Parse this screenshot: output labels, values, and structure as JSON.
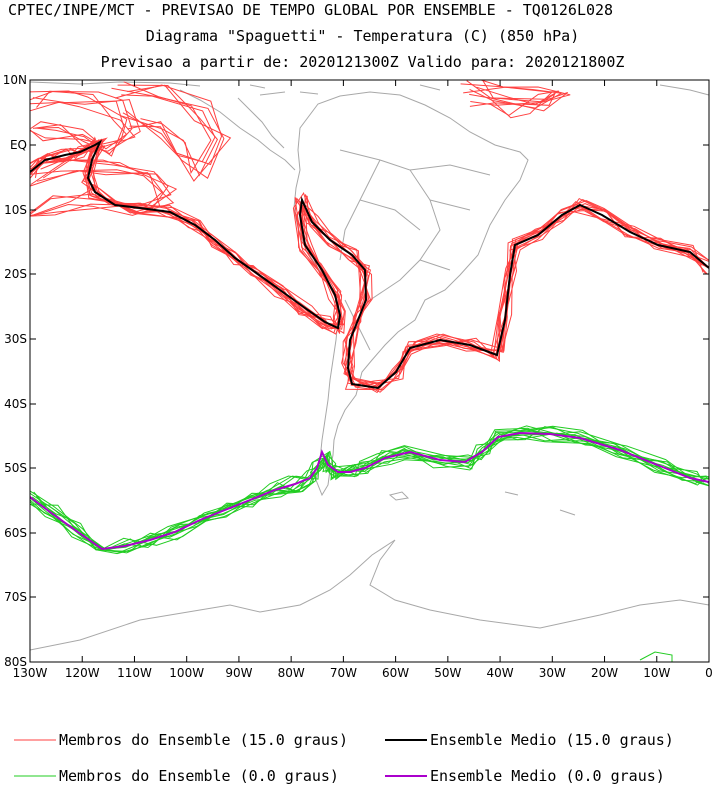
{
  "titles": {
    "line1": "CPTEC/INPE/MCT - PREVISAO DE TEMPO GLOBAL POR ENSEMBLE - TQ0126L028",
    "line2": "Diagrama \"Spaguetti\" - Temperatura (C) (850 hPa)",
    "line3": "Previsao a partir de: 2020121300Z  Valido para: 2020121800Z"
  },
  "axes": {
    "lat_labels": [
      "10N",
      "EQ",
      "10S",
      "20S",
      "30S",
      "40S",
      "50S",
      "60S",
      "70S",
      "80S"
    ],
    "lon_labels": [
      "130W",
      "120W",
      "110W",
      "100W",
      "90W",
      "80W",
      "70W",
      "60W",
      "50W",
      "40W",
      "30W",
      "20W",
      "10W",
      "0"
    ]
  },
  "legend": {
    "items": [
      {
        "label": "Membros do Ensemble (15.0 graus)",
        "color": "#ff4040"
      },
      {
        "label": "Ensemble Medio (15.0 graus)",
        "color": "#000000"
      },
      {
        "label": "Membros do Ensemble (0.0 graus)",
        "color": "#22cc22"
      },
      {
        "label": "Ensemble Medio (0.0 graus)",
        "color": "#aa00cc"
      }
    ]
  },
  "colors": {
    "coast": "#a8a8a8",
    "red_members": "#ff4040",
    "green_members": "#22cc22",
    "mean_15": "#000000",
    "mean_0": "#aa00cc"
  }
}
